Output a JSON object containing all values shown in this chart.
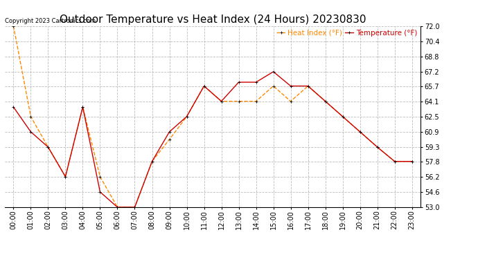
{
  "title": "Outdoor Temperature vs Heat Index (24 Hours) 20230830",
  "copyright": "Copyright 2023 Cartronics.com",
  "legend_heat": "Heat Index (°F)",
  "legend_temp": "Temperature (°F)",
  "hours": [
    "00:00",
    "01:00",
    "02:00",
    "03:00",
    "04:00",
    "05:00",
    "06:00",
    "07:00",
    "08:00",
    "09:00",
    "10:00",
    "11:00",
    "12:00",
    "13:00",
    "14:00",
    "15:00",
    "16:00",
    "17:00",
    "18:00",
    "19:00",
    "20:00",
    "21:00",
    "22:00",
    "23:00"
  ],
  "temperature": [
    63.5,
    60.9,
    59.3,
    56.2,
    63.5,
    54.6,
    53.0,
    53.0,
    57.8,
    60.9,
    62.5,
    65.7,
    64.1,
    66.1,
    66.1,
    67.2,
    65.7,
    65.7,
    64.1,
    62.5,
    60.9,
    59.3,
    57.8,
    57.8
  ],
  "heat_index": [
    72.0,
    62.5,
    59.3,
    56.2,
    63.5,
    56.2,
    53.0,
    53.0,
    57.8,
    60.1,
    62.5,
    65.7,
    64.1,
    64.1,
    64.1,
    65.7,
    64.1,
    65.7,
    64.1,
    62.5,
    60.9,
    59.3,
    57.8,
    57.8
  ],
  "temp_color": "#cc0000",
  "heat_color": "#ff8800",
  "ylim_min": 53.0,
  "ylim_max": 72.0,
  "yticks": [
    53.0,
    54.6,
    56.2,
    57.8,
    59.3,
    60.9,
    62.5,
    64.1,
    65.7,
    67.2,
    68.8,
    70.4,
    72.0
  ],
  "bg_color": "#ffffff",
  "grid_color": "#bbbbbb",
  "title_fontsize": 11,
  "legend_fontsize": 7.5,
  "axis_fontsize": 7,
  "marker": "+"
}
